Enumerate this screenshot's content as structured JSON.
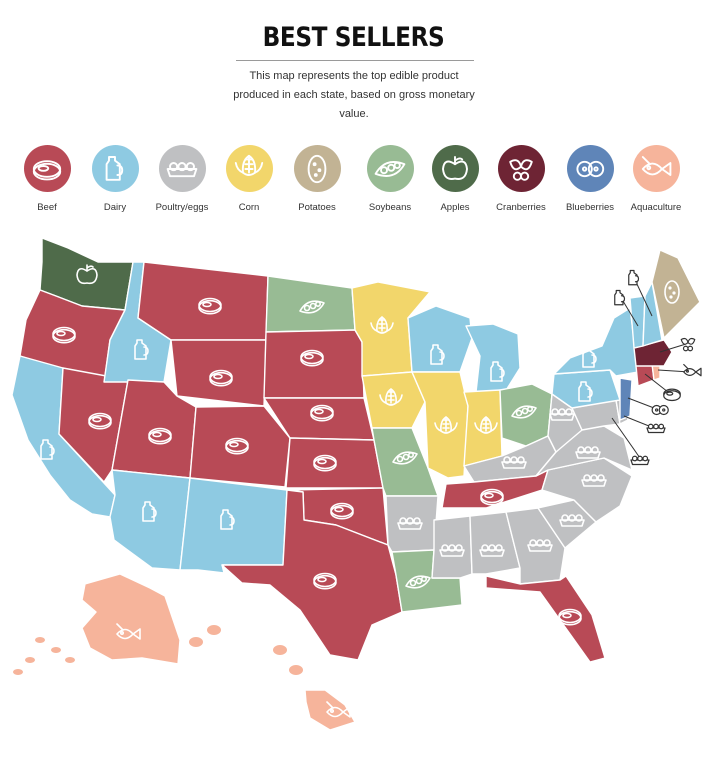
{
  "title": "BEST SELLERS",
  "subtitle": "This map represents the top edible product produced in each state, based on gross monetary value.",
  "legend": [
    {
      "key": "beef",
      "label": "Beef",
      "color": "#B84A56",
      "icon": "steak-icon"
    },
    {
      "key": "dairy",
      "label": "Dairy",
      "color": "#8ECAE2",
      "icon": "milk-jug-icon"
    },
    {
      "key": "poultry",
      "label": "Poultry/eggs",
      "color": "#BFC0C2",
      "icon": "egg-carton-icon"
    },
    {
      "key": "corn",
      "label": "Corn",
      "color": "#F2D66B",
      "icon": "corn-icon"
    },
    {
      "key": "potatoes",
      "label": "Potatoes",
      "color": "#C2B394",
      "icon": "potato-icon"
    },
    {
      "key": "soybeans",
      "label": "Soybeans",
      "color": "#98BB94",
      "icon": "soybean-pod-icon"
    },
    {
      "key": "apples",
      "label": "Apples",
      "color": "#4F6B4A",
      "icon": "apple-icon"
    },
    {
      "key": "cranberries",
      "label": "Cranberries",
      "color": "#6E2434",
      "icon": "cranberry-icon"
    },
    {
      "key": "blueberries",
      "label": "Blueberries",
      "color": "#5F85B8",
      "icon": "blueberry-icon"
    },
    {
      "key": "aquaculture",
      "label": "Aquaculture",
      "color": "#F6B49B",
      "icon": "fish-icon"
    }
  ],
  "states": {
    "WA": "apples",
    "OR": "beef",
    "CA": "dairy",
    "ID": "dairy",
    "NV": "beef",
    "UT": "beef",
    "AZ": "dairy",
    "MT": "beef",
    "WY": "beef",
    "CO": "beef",
    "NM": "dairy",
    "ND": "soybeans",
    "SD": "beef",
    "NE": "beef",
    "KS": "beef",
    "OK": "beef",
    "TX": "beef",
    "MN": "corn",
    "IA": "corn",
    "MO": "soybeans",
    "AR": "poultry",
    "LA": "soybeans",
    "WI": "dairy",
    "IL": "corn",
    "MI": "dairy",
    "IN": "corn",
    "OH": "soybeans",
    "KY": "poultry",
    "TN": "beef",
    "MS": "poultry",
    "AL": "poultry",
    "GA": "poultry",
    "FL": "beef",
    "SC": "poultry",
    "NC": "poultry",
    "VA": "poultry",
    "WV": "poultry",
    "MD": "poultry",
    "DE": "poultry",
    "PA": "dairy",
    "NY": "dairy",
    "NJ": "blueberries",
    "CT": "beef",
    "RI": "aquaculture",
    "MA": "cranberries",
    "VT": "dairy",
    "NH": "dairy",
    "ME": "potatoes",
    "AK": "aquaculture",
    "HI": "aquaculture"
  }
}
